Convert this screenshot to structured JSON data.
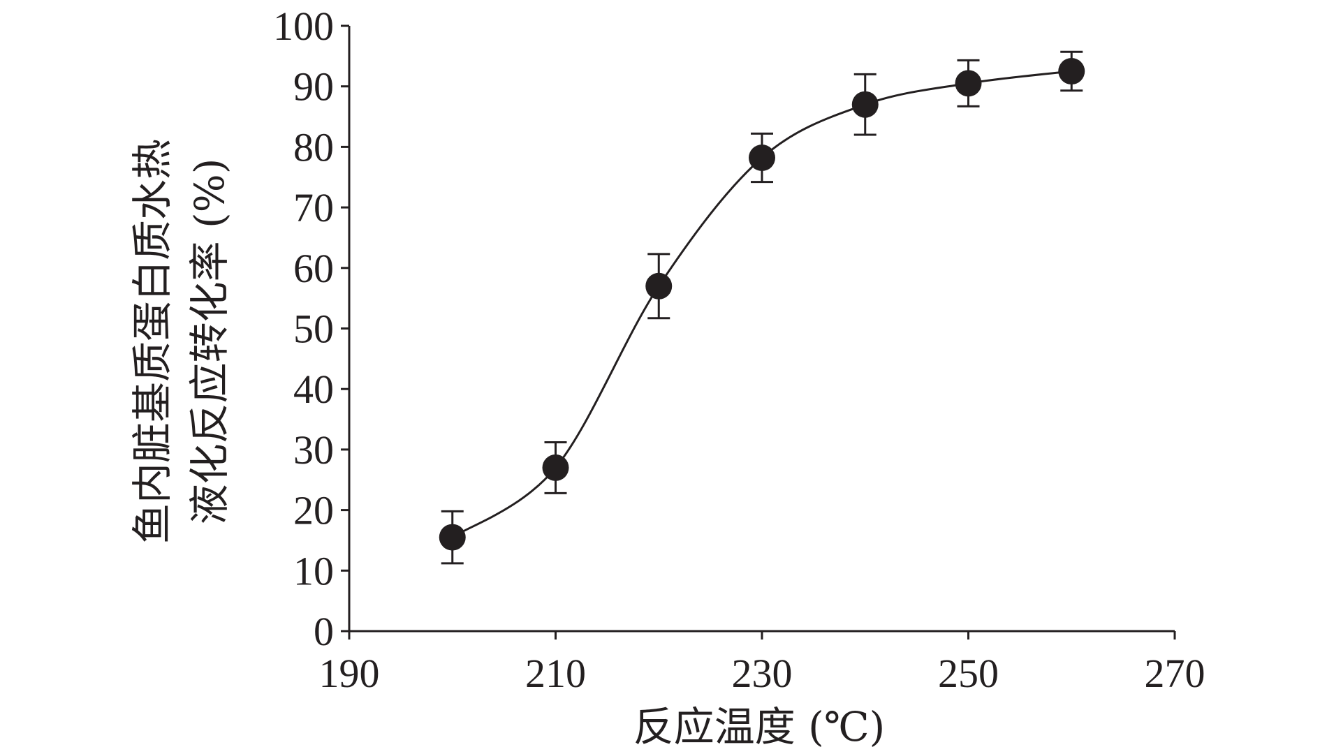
{
  "chart_data": {
    "type": "line",
    "title": "",
    "xlabel": "反应温度 (℃)",
    "ylabel_lines": [
      "鱼内脏基质蛋白质水热",
      "液化反应转化率 (%)"
    ],
    "xlim": [
      190,
      270
    ],
    "ylim": [
      0,
      100
    ],
    "xticks": [
      190,
      210,
      230,
      250,
      270
    ],
    "yticks": [
      0,
      10,
      20,
      30,
      40,
      50,
      60,
      70,
      80,
      90,
      100
    ],
    "grid": false,
    "legend": "none",
    "marker": "filled-circle",
    "color": "#231f20",
    "series": [
      {
        "x": [
          200,
          210,
          220,
          230,
          240,
          250,
          260
        ],
        "y": [
          15.5,
          27,
          57,
          78.2,
          87,
          90.5,
          92.5
        ],
        "error": [
          4.3,
          4.2,
          5.3,
          4.0,
          5.0,
          3.8,
          3.2
        ]
      }
    ]
  }
}
